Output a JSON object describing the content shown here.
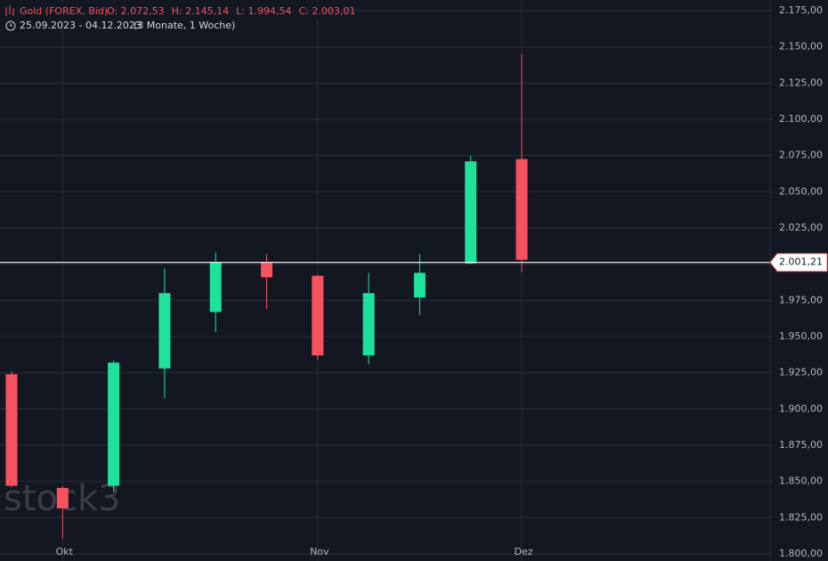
{
  "chart_data": {
    "type": "candlestick",
    "header": {
      "symbol": "Gold (FOREX, Bid)",
      "ohlc_labels": [
        "O: 2.072,53",
        "H: 2.145,14",
        "L: 1.994,54",
        "C: 2.003,01"
      ],
      "range": "25.09.2023 - 04.12.2023",
      "duration": "(3 Monate, 1 Woche)"
    },
    "watermark": "stock3",
    "categories": [
      null,
      "Okt",
      null,
      null,
      null,
      null,
      "Nov",
      null,
      null,
      null,
      "Dez"
    ],
    "open": [
      1924,
      1845.5,
      1847,
      1928,
      1967,
      2001,
      1992,
      1937,
      1977,
      2000.5,
      2072.53
    ],
    "high": [
      1926,
      1846.7,
      1933.4,
      1997,
      2008,
      2007,
      1993,
      1994,
      2007,
      2075,
      2145.14
    ],
    "low": [
      1846,
      1810.5,
      1843,
      1907.6,
      1953,
      1969,
      1934,
      1931,
      1965,
      2000,
      1994.54
    ],
    "close": [
      1847,
      1831.4,
      1932,
      1980,
      2001,
      1991,
      1937,
      1980,
      1994,
      2071,
      2003.01
    ],
    "up_color": "#1fe29a",
    "down_color": "#f7525f",
    "ylim": [
      1800,
      2175
    ],
    "yticks": [
      {
        "value": 1800,
        "label": "1.800,00"
      },
      {
        "value": 1825,
        "label": "1.825,00"
      },
      {
        "value": 1850,
        "label": "1.850,00"
      },
      {
        "value": 1875,
        "label": "1.875,00"
      },
      {
        "value": 1900,
        "label": "1.900,00"
      },
      {
        "value": 1925,
        "label": "1.925,00"
      },
      {
        "value": 1950,
        "label": "1.950,00"
      },
      {
        "value": 1975,
        "label": "1.975,00"
      },
      {
        "value": 2000,
        "label": "2.000,00"
      },
      {
        "value": 2025,
        "label": "2.025,00"
      },
      {
        "value": 2050,
        "label": "2.050,00"
      },
      {
        "value": 2075,
        "label": "2.075,00"
      },
      {
        "value": 2100,
        "label": "2.100,00"
      },
      {
        "value": 2125,
        "label": "2.125,00"
      },
      {
        "value": 2150,
        "label": "2.150,00"
      },
      {
        "value": 2175,
        "label": "2.175,00"
      }
    ],
    "price_line": {
      "value": 2001.21,
      "label": "2.001,21"
    },
    "grid": true
  }
}
